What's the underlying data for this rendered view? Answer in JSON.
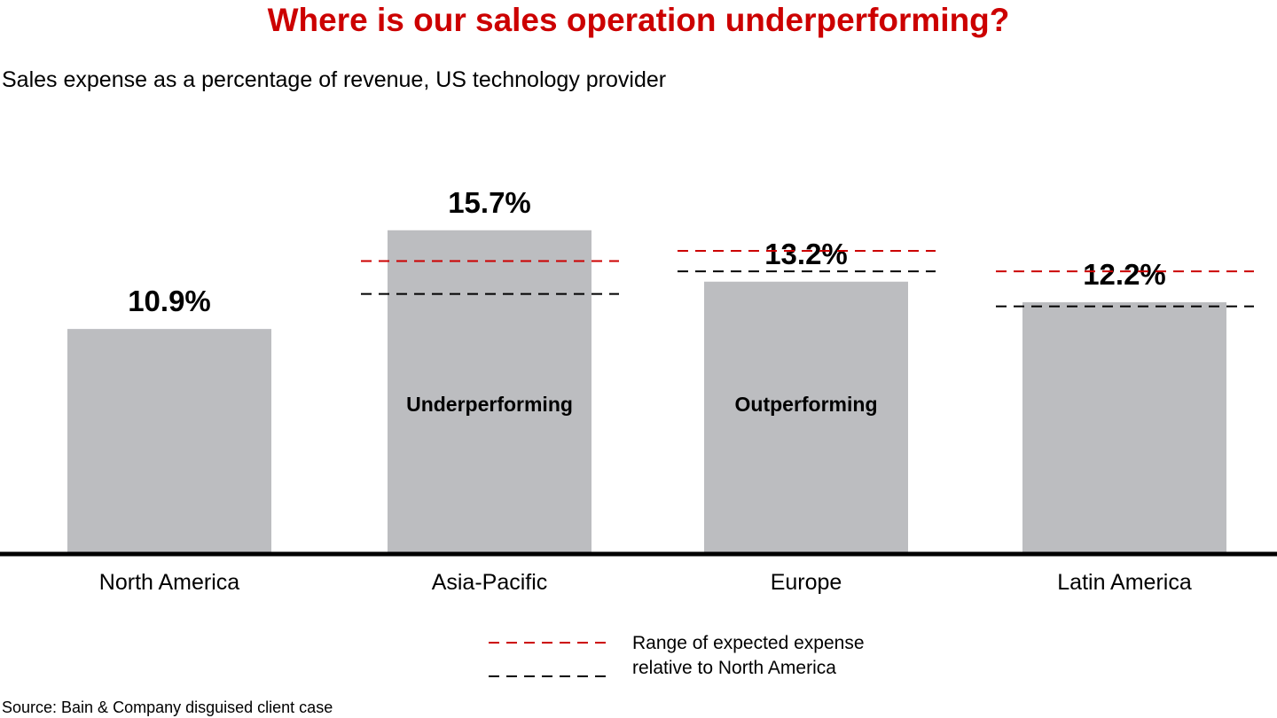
{
  "chart_data": {
    "type": "bar",
    "title": "Where is our sales operation underperforming?",
    "subtitle": "Sales expense as a percentage of revenue, US technology provider",
    "categories": [
      "North America",
      "Asia-Pacific",
      "Europe",
      "Latin America"
    ],
    "values": [
      10.9,
      15.7,
      13.2,
      12.2
    ],
    "data_labels": [
      "10.9%",
      "15.7%",
      "13.2%",
      "12.2%"
    ],
    "bar_annotations": [
      "",
      "Underperforming",
      "Outperforming",
      ""
    ],
    "expected_range": [
      null,
      {
        "low": 12.6,
        "high": 14.2
      },
      {
        "low": 13.7,
        "high": 14.7
      },
      {
        "low": 12.0,
        "high": 13.7
      }
    ],
    "ylim": [
      0,
      17
    ],
    "xlabel": "",
    "ylabel": "",
    "grid": false,
    "legend": {
      "placement": "bottom-center",
      "line1": "Range of expected expense",
      "line2": "relative to North America"
    },
    "colors": {
      "bar": "#bcbdc0",
      "range_high": "#cc0000",
      "range_low": "#000000",
      "title": "#cc0000",
      "axis": "#000000"
    }
  },
  "source": "Source: Bain & Company disguised client case"
}
